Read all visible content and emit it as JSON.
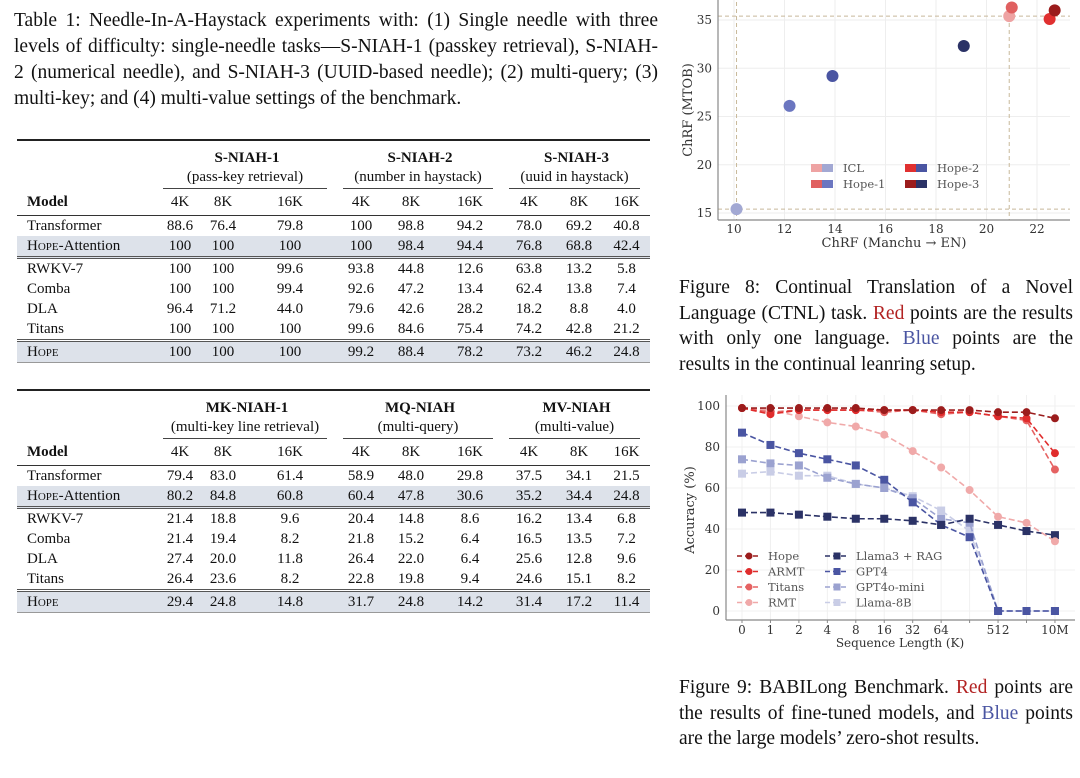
{
  "table1_caption": "Table 1: Needle-In-A-Haystack experiments with: (1) Single needle with three levels of difficulty: single-needle tasks—S-NIAH-1 (passkey retrieval), S-NIAH-2 (numerical needle), and S-NIAH-3 (UUID-based needle); (2) multi-query; (3) multi-key; and (4) multi-value settings of the benchmark.",
  "tables": [
    {
      "groups": [
        {
          "title": "S-NIAH-1",
          "subtitle": "(pass-key retrieval)"
        },
        {
          "title": "S-NIAH-2",
          "subtitle": "(number in haystack)"
        },
        {
          "title": "S-NIAH-3",
          "subtitle": "(uuid in haystack)"
        }
      ],
      "model_header": "Model",
      "columns": [
        "4K",
        "8K",
        "16K",
        "4K",
        "8K",
        "16K",
        "4K",
        "8K",
        "16K"
      ],
      "sections": [
        [
          {
            "model": "Transformer",
            "values": [
              "88.6",
              "76.4",
              "79.8",
              "100",
              "98.8",
              "94.2",
              "78.0",
              "69.2",
              "40.8"
            ]
          },
          {
            "model": "Hope-Attention",
            "highlight": true,
            "values": [
              "100",
              "100",
              "100",
              "100",
              "98.4",
              "94.4",
              "76.8",
              "68.8",
              "42.4"
            ]
          }
        ],
        [
          {
            "model": "RWKV-7",
            "values": [
              "100",
              "100",
              "99.6",
              "93.8",
              "44.8",
              "12.6",
              "63.8",
              "13.2",
              "5.8"
            ]
          },
          {
            "model": "Comba",
            "values": [
              "100",
              "100",
              "99.4",
              "92.6",
              "47.2",
              "13.4",
              "62.4",
              "13.8",
              "7.4"
            ]
          },
          {
            "model": "DLA",
            "values": [
              "96.4",
              "71.2",
              "44.0",
              "79.6",
              "42.6",
              "28.2",
              "18.2",
              "8.8",
              "4.0"
            ]
          },
          {
            "model": "Titans",
            "values": [
              "100",
              "100",
              "100",
              "99.6",
              "84.6",
              "75.4",
              "74.2",
              "42.8",
              "21.2"
            ]
          }
        ],
        [
          {
            "model": "Hope",
            "highlight": true,
            "values": [
              "100",
              "100",
              "100",
              "99.2",
              "88.4",
              "78.2",
              "73.2",
              "46.2",
              "24.8"
            ]
          }
        ]
      ]
    },
    {
      "groups": [
        {
          "title": "MK-NIAH-1",
          "subtitle": "(multi-key line retrieval)"
        },
        {
          "title": "MQ-NIAH",
          "subtitle": "(multi-query)"
        },
        {
          "title": "MV-NIAH",
          "subtitle": "(multi-value)"
        }
      ],
      "model_header": "Model",
      "columns": [
        "4K",
        "8K",
        "16K",
        "4K",
        "8K",
        "16K",
        "4K",
        "8K",
        "16K"
      ],
      "sections": [
        [
          {
            "model": "Transformer",
            "values": [
              "79.4",
              "83.0",
              "61.4",
              "58.9",
              "48.0",
              "29.8",
              "37.5",
              "34.1",
              "21.5"
            ]
          },
          {
            "model": "Hope-Attention",
            "highlight": true,
            "values": [
              "80.2",
              "84.8",
              "60.8",
              "60.4",
              "47.8",
              "30.6",
              "35.2",
              "34.4",
              "24.8"
            ]
          }
        ],
        [
          {
            "model": "RWKV-7",
            "values": [
              "21.4",
              "18.8",
              "9.6",
              "20.4",
              "14.8",
              "8.6",
              "16.2",
              "13.4",
              "6.8"
            ]
          },
          {
            "model": "Comba",
            "values": [
              "21.4",
              "19.4",
              "8.2",
              "21.8",
              "15.2",
              "6.4",
              "16.5",
              "13.5",
              "7.2"
            ]
          },
          {
            "model": "DLA",
            "values": [
              "27.4",
              "20.0",
              "11.8",
              "26.4",
              "22.0",
              "6.4",
              "25.6",
              "12.8",
              "9.6"
            ]
          },
          {
            "model": "Titans",
            "values": [
              "26.4",
              "23.6",
              "8.2",
              "22.8",
              "19.8",
              "9.4",
              "24.6",
              "15.1",
              "8.2"
            ]
          }
        ],
        [
          {
            "model": "Hope",
            "highlight": true,
            "values": [
              "29.4",
              "24.8",
              "14.8",
              "31.7",
              "24.8",
              "14.2",
              "31.4",
              "17.2",
              "11.4"
            ]
          }
        ]
      ]
    }
  ],
  "figure8_caption": [
    {
      "text": "Figure 8: Continual Translation of a Novel Language (CTNL) task. "
    },
    {
      "text": "Red",
      "color": "#b22222"
    },
    {
      "text": " points are the results with only one language. "
    },
    {
      "text": "Blue",
      "color": "#4a55a2"
    },
    {
      "text": " points are the results in the continual leanring setup."
    }
  ],
  "figure9_caption": [
    {
      "text": "Figure 9: BABILong Benchmark. "
    },
    {
      "text": "Red",
      "color": "#b22222"
    },
    {
      "text": " points are the results of fine-tuned models, and "
    },
    {
      "text": "Blue",
      "color": "#4a55a2"
    },
    {
      "text": " points are the large models’ zero-shot results."
    }
  ],
  "chart_data": [
    {
      "type": "scatter",
      "xlabel": "ChRF (Manchu → EN)",
      "ylabel": "ChRF (MTOB)",
      "xticks": [
        10,
        12,
        14,
        16,
        18,
        20,
        22
      ],
      "yticks": [
        15,
        20,
        25,
        30,
        35
      ],
      "xlim": [
        9.6,
        23.2
      ],
      "ylim": [
        14.5,
        37
      ],
      "grid": true,
      "legend_position": "lower-center",
      "reference_lines": {
        "x": [
          10.1,
          20.9
        ],
        "y": [
          15.4,
          35.4
        ]
      },
      "series": [
        {
          "name": "ICL",
          "colors": [
            "#eea3a3",
            "#a2a8d3"
          ],
          "points": [
            {
              "x": 20.9,
              "y": 35.4,
              "group": "red"
            },
            {
              "x": 10.1,
              "y": 15.4,
              "group": "blue"
            }
          ]
        },
        {
          "name": "Hope-1",
          "colors": [
            "#e06060",
            "#6b76c0"
          ],
          "points": [
            {
              "x": 21.0,
              "y": 36.3,
              "group": "red"
            },
            {
              "x": 12.2,
              "y": 26.1,
              "group": "blue"
            }
          ]
        },
        {
          "name": "Hope-2",
          "colors": [
            "#e03030",
            "#4a55a2"
          ],
          "points": [
            {
              "x": 22.5,
              "y": 35.1,
              "group": "red"
            },
            {
              "x": 13.9,
              "y": 29.2,
              "group": "blue"
            }
          ]
        },
        {
          "name": "Hope-3",
          "colors": [
            "#9b1c1c",
            "#2b3266"
          ],
          "points": [
            {
              "x": 22.7,
              "y": 36.0,
              "group": "red"
            },
            {
              "x": 19.1,
              "y": 32.3,
              "group": "blue"
            }
          ]
        }
      ]
    },
    {
      "type": "line",
      "xlabel": "Sequence Length (K)",
      "ylabel": "Accuracy (%)",
      "categories": [
        "0",
        "1",
        "2",
        "4",
        "8",
        "16",
        "32",
        "64",
        "",
        "512",
        "",
        "10M"
      ],
      "yticks": [
        0,
        20,
        40,
        60,
        80,
        100
      ],
      "ylim": [
        -3,
        103
      ],
      "grid": true,
      "legend_position": "lower-left",
      "series": [
        {
          "name": "Hope",
          "color": "#9b1c1c",
          "marker": "circle",
          "values": [
            99,
            99,
            99,
            99,
            99,
            98,
            98,
            98,
            98,
            97,
            97,
            94
          ]
        },
        {
          "name": "ARMT",
          "color": "#e02c2c",
          "marker": "circle",
          "values": [
            99,
            96,
            98,
            98,
            98,
            98,
            98,
            97,
            97,
            95,
            94,
            77
          ]
        },
        {
          "name": "Titans",
          "color": "#e56262",
          "marker": "circle",
          "values": [
            99,
            97,
            98,
            98,
            98,
            97,
            98,
            96,
            97,
            95,
            93,
            69
          ]
        },
        {
          "name": "RMT",
          "color": "#f0a9a9",
          "marker": "circle",
          "values": [
            99,
            98,
            95,
            92,
            90,
            86,
            78,
            70,
            59,
            46,
            43,
            34
          ]
        },
        {
          "name": "Llama3 + RAG",
          "color": "#2b3266",
          "marker": "square",
          "values": [
            48,
            48,
            47,
            46,
            45,
            45,
            44,
            42,
            45,
            42,
            39,
            37
          ]
        },
        {
          "name": "GPT4",
          "color": "#4a55a2",
          "marker": "square",
          "values": [
            87,
            81,
            77,
            74,
            71,
            64,
            53,
            42,
            36,
            0,
            0,
            0
          ]
        },
        {
          "name": "GPT4o-mini",
          "color": "#9ba2d0",
          "marker": "square",
          "values": [
            74,
            72,
            71,
            65,
            62,
            60,
            55,
            45,
            43,
            0,
            0,
            0
          ]
        },
        {
          "name": "Llama-8B",
          "color": "#c9cde6",
          "marker": "square",
          "values": [
            67,
            68,
            66,
            66,
            62,
            60,
            56,
            49,
            39,
            0,
            0,
            0
          ]
        }
      ]
    }
  ]
}
